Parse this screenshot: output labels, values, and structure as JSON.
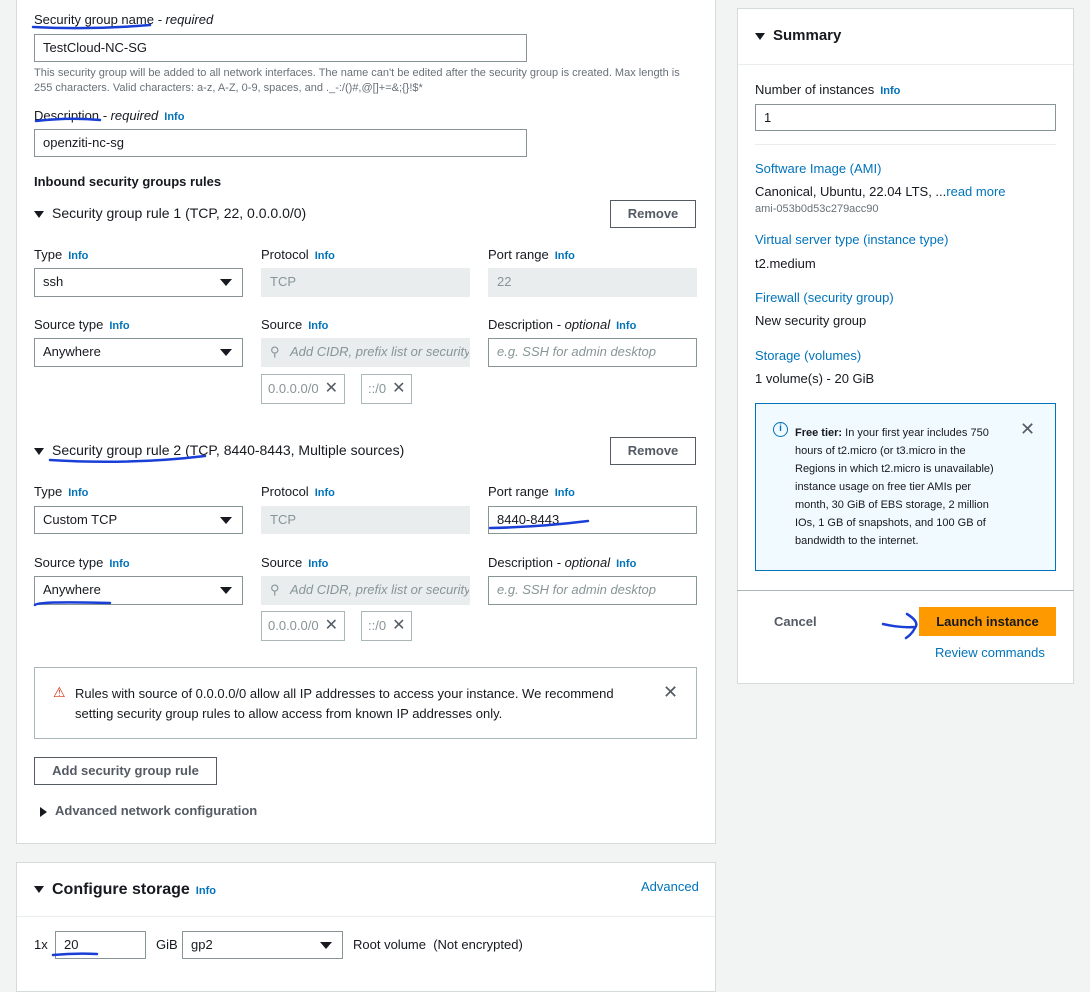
{
  "security_group": {
    "name_label": "Security group name",
    "required": " - required",
    "name_value": "TestCloud-NC-SG",
    "name_help": "This security group will be added to all network interfaces. The name can't be edited after the security group is created. Max length is 255 characters. Valid characters: a-z, A-Z, 0-9, spaces, and ._-:/()#,@[]+=&;{}!$*",
    "description_label": "Description",
    "description_value": "openziti-nc-sg",
    "info": "Info",
    "inbound_title": "Inbound security groups rules"
  },
  "labels": {
    "type": "Type",
    "protocol": "Protocol",
    "port_range": "Port range",
    "source_type": "Source type",
    "source": "Source",
    "description": "Description",
    "optional": " - optional",
    "remove": "Remove",
    "source_placeholder": "Add CIDR, prefix list or security",
    "desc_placeholder": "e.g. SSH for admin desktop"
  },
  "rules": [
    {
      "title": "Security group rule 1 (TCP, 22, 0.0.0.0/0)",
      "type": "ssh",
      "protocol": "TCP",
      "port_range": "22",
      "source_type": "Anywhere",
      "tokens": [
        "0.0.0.0/0",
        "::/0"
      ]
    },
    {
      "title": "Security group rule 2 (TCP, 8440-8443, Multiple sources)",
      "type": "Custom TCP",
      "protocol": "TCP",
      "port_range": "8440-8443",
      "source_type": "Anywhere",
      "tokens": [
        "0.0.0.0/0",
        "::/0"
      ]
    }
  ],
  "warning": "Rules with source of 0.0.0.0/0 allow all IP addresses to access your instance. We recommend setting security group rules to allow access from known IP addresses only.",
  "add_rule": "Add security group rule",
  "advanced_network": "Advanced network configuration",
  "storage": {
    "title": "Configure storage",
    "info": "Info",
    "advanced": "Advanced",
    "count": "1x",
    "size": "20",
    "unit": "GiB",
    "volume_type": "gp2",
    "root": "Root volume",
    "encrypted": "(Not encrypted)"
  },
  "summary": {
    "title": "Summary",
    "instances_label": "Number of instances",
    "info": "Info",
    "instances_value": "1",
    "ami_label": "Software Image (AMI)",
    "ami_value": "Canonical, Ubuntu, 22.04 LTS, ...",
    "read_more": "read more",
    "ami_id": "ami-053b0d53c279acc90",
    "type_label": "Virtual server type (instance type)",
    "type_value": "t2.medium",
    "firewall_label": "Firewall (security group)",
    "firewall_value": "New security group",
    "storage_label": "Storage (volumes)",
    "storage_value": "1 volume(s) - 20 GiB",
    "free_tier_bold": "Free tier:",
    "free_tier_text": " In your first year includes 750 hours of t2.micro (or t3.micro in the Regions in which t2.micro is unavailable) instance usage on free tier AMIs per month, 30 GiB of EBS storage, 2 million IOs, 1 GB of snapshots, and 100 GB of bandwidth to the internet.",
    "cancel": "Cancel",
    "launch": "Launch instance",
    "review": "Review commands"
  },
  "colors": {
    "accent": "#0073bb",
    "launch": "#ff9900",
    "warning": "#d13212",
    "annotation": "#1a3fd6"
  }
}
